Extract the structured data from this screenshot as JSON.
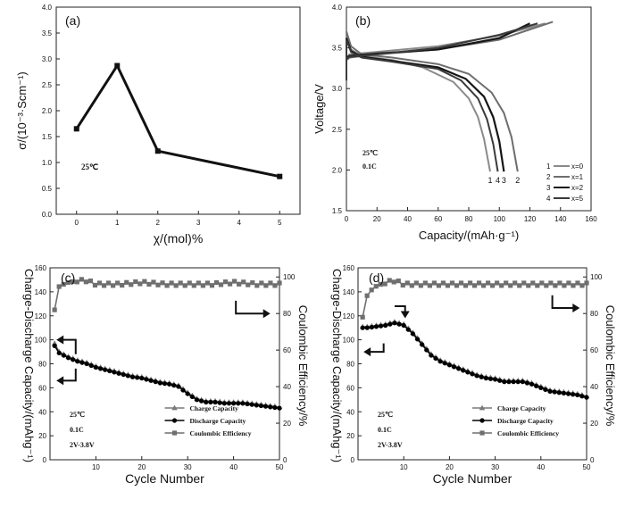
{
  "chart_data": [
    {
      "panel": "(a)",
      "type": "line",
      "xlabel": "χ/(mol)%",
      "ylabel": "σ/(10⁻³·Scm⁻¹)",
      "xlim": [
        -0.5,
        5.5
      ],
      "ylim": [
        0.0,
        4.0
      ],
      "xticks": [
        "0",
        "1",
        "2",
        "3",
        "4",
        "5"
      ],
      "yticks": [
        "0.0",
        "0.5",
        "1.0",
        "1.5",
        "2.0",
        "2.5",
        "3.0",
        "3.5",
        "4.0"
      ],
      "annotations": [
        "25℃"
      ],
      "series": [
        {
          "x": [
            0,
            1,
            2,
            5
          ],
          "y": [
            1.65,
            2.87,
            1.22,
            0.73
          ]
        }
      ]
    },
    {
      "panel": "(b)",
      "type": "line",
      "xlabel": "Capacity/(mAh·g⁻¹)",
      "ylabel": "Voltage/V",
      "xlim": [
        0,
        160
      ],
      "ylim": [
        1.5,
        4.0
      ],
      "xticks": [
        "0",
        "20",
        "40",
        "60",
        "80",
        "100",
        "120",
        "140",
        "160"
      ],
      "yticks": [
        "1.5",
        "2.0",
        "2.5",
        "3.0",
        "3.5",
        "4.0"
      ],
      "annotations": [
        "25℃",
        "0.1C"
      ],
      "curve_labels": [
        "1",
        "4",
        "3",
        "2"
      ],
      "legend_position": "right",
      "series": [
        {
          "name": "x=0",
          "legend_index": "1",
          "color": "#8a8a8a",
          "discharge_x": [
            0,
            3,
            10,
            30,
            50,
            70,
            80,
            86,
            90,
            94
          ],
          "discharge_y": [
            3.62,
            3.48,
            3.4,
            3.35,
            3.26,
            3.08,
            2.88,
            2.65,
            2.38,
            1.98
          ],
          "charge_x": [
            0,
            2,
            20,
            60,
            100,
            130
          ],
          "charge_y": [
            3.38,
            3.42,
            3.45,
            3.52,
            3.65,
            3.8
          ]
        },
        {
          "name": "x=1",
          "legend_index": "2",
          "color": "#6e6e6e",
          "discharge_x": [
            0,
            3,
            10,
            30,
            60,
            80,
            95,
            103,
            108,
            112
          ],
          "discharge_y": [
            3.7,
            3.52,
            3.42,
            3.38,
            3.3,
            3.18,
            2.95,
            2.7,
            2.4,
            1.98
          ],
          "charge_x": [
            0,
            2,
            20,
            60,
            100,
            135
          ],
          "charge_y": [
            3.35,
            3.38,
            3.42,
            3.48,
            3.6,
            3.82
          ]
        },
        {
          "name": "x=2",
          "legend_index": "3",
          "color": "#151515",
          "discharge_x": [
            0,
            3,
            10,
            30,
            60,
            78,
            90,
            96,
            100,
            103
          ],
          "discharge_y": [
            3.62,
            3.46,
            3.39,
            3.34,
            3.26,
            3.12,
            2.9,
            2.65,
            2.35,
            1.98
          ],
          "charge_x": [
            0,
            2,
            20,
            60,
            100,
            120
          ],
          "charge_y": [
            3.38,
            3.4,
            3.43,
            3.48,
            3.62,
            3.8
          ]
        },
        {
          "name": "x=5",
          "legend_index": "4",
          "color": "#3a3a3a",
          "discharge_x": [
            0,
            3,
            10,
            30,
            60,
            75,
            86,
            92,
            96,
            99
          ],
          "discharge_y": [
            3.6,
            3.45,
            3.38,
            3.33,
            3.24,
            3.1,
            2.88,
            2.62,
            2.32,
            1.98
          ],
          "charge_x": [
            0,
            2,
            20,
            60,
            100,
            125
          ],
          "charge_y": [
            3.36,
            3.39,
            3.42,
            3.5,
            3.66,
            3.8
          ]
        }
      ]
    },
    {
      "panel": "(c)",
      "type": "line",
      "xlabel": "Cycle Number",
      "ylabel": "Charge-Discharge Capacity/(mAhg⁻¹)",
      "y2label": "Coulombic Efficiency/%",
      "xlim": [
        0,
        50
      ],
      "ylim": [
        0,
        160
      ],
      "y2lim": [
        0,
        105
      ],
      "xticks": [
        "10",
        "20",
        "30",
        "40",
        "50"
      ],
      "yticks": [
        "0",
        "20",
        "40",
        "60",
        "80",
        "100",
        "120",
        "140",
        "160"
      ],
      "y2ticks": [
        "0",
        "20",
        "40",
        "60",
        "80",
        "100"
      ],
      "annotations": [
        "25℃",
        "0.1C",
        "2V-3.8V"
      ],
      "legend_position": "bottom-right",
      "series": [
        {
          "name": "Charge Capacity",
          "marker": "triangle",
          "color": "#7a7a7a",
          "axis": "left",
          "x": [
            1,
            2,
            4,
            6,
            8,
            10,
            12,
            14,
            16,
            18,
            20,
            22,
            24,
            26,
            28,
            30,
            32,
            34,
            36,
            38,
            40,
            42,
            44,
            46,
            48,
            50
          ],
          "y": [
            97,
            90,
            86,
            83,
            81,
            78,
            76,
            74,
            72,
            70,
            69,
            67,
            65,
            64,
            62,
            56,
            51,
            49,
            49,
            48,
            48,
            48,
            47,
            46,
            45,
            44
          ]
        },
        {
          "name": "Discharge Capacity",
          "marker": "circle",
          "color": "#000000",
          "axis": "left",
          "x": [
            1,
            2,
            4,
            6,
            8,
            10,
            12,
            14,
            16,
            18,
            20,
            22,
            24,
            26,
            28,
            30,
            32,
            34,
            36,
            38,
            40,
            42,
            44,
            46,
            48,
            50
          ],
          "y": [
            95,
            89,
            85,
            82,
            80,
            77,
            75,
            73,
            71,
            69,
            68,
            66,
            64,
            63,
            61,
            55,
            50,
            48,
            48,
            47,
            47,
            47,
            46,
            45,
            44,
            43
          ]
        },
        {
          "name": "Coulombic Efficiency",
          "marker": "square",
          "color": "#6f6f6f",
          "axis": "right",
          "x": [
            1,
            2,
            3,
            4,
            6,
            8,
            10,
            15,
            20,
            25,
            30,
            35,
            40,
            45,
            50
          ],
          "y": [
            82,
            95,
            96,
            97,
            98,
            98,
            96,
            96,
            97,
            96,
            96,
            96,
            97,
            96,
            96
          ]
        }
      ]
    },
    {
      "panel": "(d)",
      "type": "line",
      "xlabel": "Cycle Number",
      "ylabel": "Charge-Discharge Capacity/(mAhg⁻¹)",
      "y2label": "Coulombic Efficiency/%",
      "xlim": [
        0,
        50
      ],
      "ylim": [
        0,
        160
      ],
      "y2lim": [
        0,
        105
      ],
      "xticks": [
        "10",
        "20",
        "30",
        "40",
        "50"
      ],
      "yticks": [
        "0",
        "20",
        "40",
        "60",
        "80",
        "100",
        "120",
        "140",
        "160"
      ],
      "y2ticks": [
        "0",
        "20",
        "40",
        "60",
        "80",
        "100"
      ],
      "annotations": [
        "25℃",
        "0.1C",
        "2V-3.8V"
      ],
      "legend_position": "bottom-right",
      "series": [
        {
          "name": "Charge Capacity",
          "marker": "triangle",
          "color": "#7a7a7a",
          "axis": "left",
          "x": [
            1,
            2,
            4,
            6,
            8,
            10,
            12,
            14,
            16,
            18,
            20,
            22,
            24,
            26,
            28,
            30,
            32,
            34,
            36,
            38,
            40,
            42,
            44,
            46,
            48,
            50
          ],
          "y": [
            111,
            111,
            112,
            113,
            115,
            113,
            106,
            97,
            88,
            83,
            80,
            77,
            74,
            71,
            69,
            68,
            66,
            66,
            66,
            64,
            61,
            58,
            57,
            56,
            55,
            53
          ]
        },
        {
          "name": "Discharge Capacity",
          "marker": "circle",
          "color": "#000000",
          "axis": "left",
          "x": [
            1,
            2,
            4,
            6,
            8,
            10,
            12,
            14,
            16,
            18,
            20,
            22,
            24,
            26,
            28,
            30,
            32,
            34,
            36,
            38,
            40,
            42,
            44,
            46,
            48,
            50
          ],
          "y": [
            110,
            110,
            111,
            112,
            114,
            112,
            105,
            96,
            87,
            82,
            79,
            76,
            73,
            70,
            68,
            67,
            65,
            65,
            65,
            63,
            60,
            57,
            56,
            55,
            54,
            52
          ]
        },
        {
          "name": "Coulombic Efficiency",
          "marker": "square",
          "color": "#6f6f6f",
          "axis": "right",
          "x": [
            1,
            2,
            3,
            4,
            6,
            8,
            10,
            15,
            20,
            25,
            30,
            35,
            40,
            45,
            50
          ],
          "y": [
            78,
            90,
            93,
            95,
            97,
            98,
            96,
            96,
            96,
            96,
            96,
            96,
            96,
            96,
            96
          ]
        }
      ]
    }
  ]
}
